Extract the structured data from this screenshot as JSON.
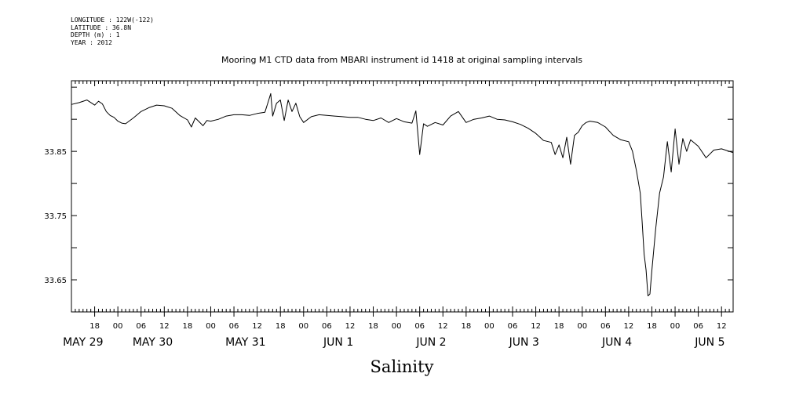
{
  "meta": {
    "longitude": "LONGITUDE : 122W(-122)",
    "latitude": "LATITUDE : 36.8N",
    "depth": "DEPTH (m) : 1",
    "year": "YEAR : 2012"
  },
  "chart_data": {
    "type": "line",
    "title": "Mooring M1 CTD data from MBARI instrument id 1418 at original sampling intervals",
    "xlabel": "Salinity",
    "ylabel": "",
    "x_unit": "hours since May 28 12:00 2012",
    "xlim": [
      0,
      171
    ],
    "ylim": [
      33.6,
      33.96
    ],
    "y_ticks": [
      33.65,
      33.75,
      33.85
    ],
    "y_tick_labels": [
      "33.65",
      "33.75",
      "33.85"
    ],
    "hour_ticks": [
      {
        "h": 6,
        "label": "18"
      },
      {
        "h": 12,
        "label": "00"
      },
      {
        "h": 18,
        "label": "06"
      },
      {
        "h": 24,
        "label": "12"
      },
      {
        "h": 30,
        "label": "18"
      },
      {
        "h": 36,
        "label": "00"
      },
      {
        "h": 42,
        "label": "06"
      },
      {
        "h": 48,
        "label": "12"
      },
      {
        "h": 54,
        "label": "18"
      },
      {
        "h": 60,
        "label": "00"
      },
      {
        "h": 66,
        "label": "06"
      },
      {
        "h": 72,
        "label": "12"
      },
      {
        "h": 78,
        "label": "18"
      },
      {
        "h": 84,
        "label": "00"
      },
      {
        "h": 90,
        "label": "06"
      },
      {
        "h": 96,
        "label": "12"
      },
      {
        "h": 102,
        "label": "18"
      },
      {
        "h": 108,
        "label": "00"
      },
      {
        "h": 114,
        "label": "06"
      },
      {
        "h": 120,
        "label": "12"
      },
      {
        "h": 126,
        "label": "18"
      },
      {
        "h": 132,
        "label": "00"
      },
      {
        "h": 138,
        "label": "06"
      },
      {
        "h": 144,
        "label": "12"
      },
      {
        "h": 150,
        "label": "18"
      },
      {
        "h": 156,
        "label": "00"
      },
      {
        "h": 162,
        "label": "06"
      },
      {
        "h": 168,
        "label": "12"
      }
    ],
    "day_labels": [
      {
        "h": 3,
        "label": "MAY 29"
      },
      {
        "h": 21,
        "label": "MAY 30"
      },
      {
        "h": 45,
        "label": "MAY 31"
      },
      {
        "h": 69,
        "label": "JUN  1"
      },
      {
        "h": 93,
        "label": "JUN  2"
      },
      {
        "h": 117,
        "label": "JUN  3"
      },
      {
        "h": 141,
        "label": "JUN  4"
      },
      {
        "h": 165,
        "label": "JUN  5"
      }
    ],
    "series": [
      {
        "color": "#000000",
        "x": [
          0,
          2,
          4,
          6,
          7,
          8,
          9,
          10,
          11,
          12,
          13,
          14,
          16,
          18,
          20,
          22,
          24,
          26,
          28,
          30,
          31,
          32,
          33,
          34,
          35,
          36,
          38,
          40,
          42,
          44,
          46,
          48,
          50,
          51,
          51.5,
          52,
          53,
          54,
          55,
          56,
          57,
          58,
          59,
          60,
          62,
          64,
          66,
          68,
          70,
          72,
          74,
          76,
          78,
          80,
          82,
          84,
          86,
          88,
          89,
          90,
          91,
          92,
          94,
          96,
          98,
          100,
          102,
          104,
          106,
          108,
          110,
          112,
          114,
          116,
          118,
          120,
          122,
          124,
          125,
          126,
          127,
          128,
          129,
          130,
          131,
          132,
          133,
          134,
          136,
          138,
          140,
          142,
          144,
          145,
          146,
          147,
          147.5,
          148,
          148.5,
          149,
          149.5,
          150,
          151,
          152,
          153,
          154,
          155,
          156,
          157,
          158,
          159,
          160,
          162,
          164,
          166,
          168,
          170,
          171
        ],
        "y": [
          33.923,
          33.926,
          33.93,
          33.922,
          33.928,
          33.924,
          33.912,
          33.906,
          33.903,
          33.897,
          33.894,
          33.893,
          33.902,
          33.912,
          33.918,
          33.922,
          33.921,
          33.917,
          33.906,
          33.899,
          33.888,
          33.902,
          33.896,
          33.89,
          33.898,
          33.897,
          33.9,
          33.905,
          33.907,
          33.907,
          33.906,
          33.909,
          33.911,
          33.93,
          33.94,
          33.905,
          33.925,
          33.93,
          33.898,
          33.93,
          33.912,
          33.925,
          33.904,
          33.895,
          33.904,
          33.907,
          33.906,
          33.905,
          33.904,
          33.903,
          33.903,
          33.9,
          33.898,
          33.902,
          33.895,
          33.901,
          33.896,
          33.894,
          33.913,
          33.845,
          33.893,
          33.889,
          33.895,
          33.891,
          33.905,
          33.912,
          33.895,
          33.9,
          33.902,
          33.905,
          33.9,
          33.899,
          33.896,
          33.892,
          33.886,
          33.878,
          33.867,
          33.864,
          33.845,
          33.86,
          33.84,
          33.872,
          33.83,
          33.875,
          33.88,
          33.89,
          33.895,
          33.897,
          33.895,
          33.888,
          33.875,
          33.868,
          33.865,
          33.85,
          33.82,
          33.785,
          33.74,
          33.69,
          33.665,
          33.625,
          33.628,
          33.665,
          33.73,
          33.785,
          33.81,
          33.865,
          33.818,
          33.885,
          33.83,
          33.87,
          33.85,
          33.868,
          33.858,
          33.84,
          33.852,
          33.854,
          33.85,
          33.848
        ]
      }
    ],
    "grid": false
  }
}
